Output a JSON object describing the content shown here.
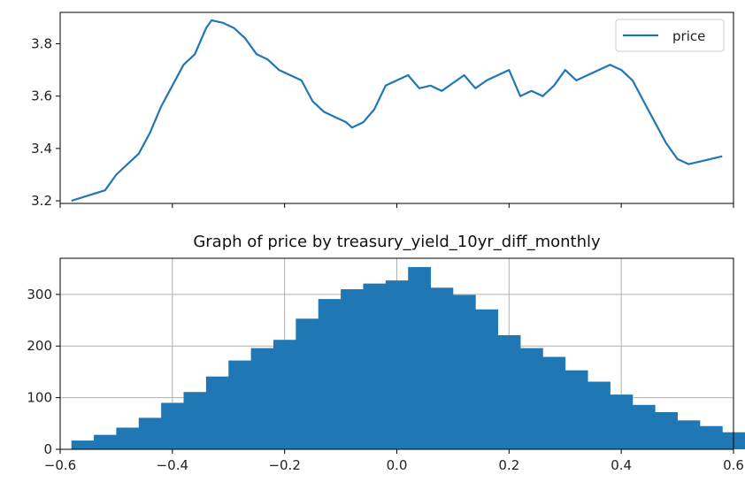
{
  "chart_data": [
    {
      "type": "line",
      "title": "",
      "xlabel": "",
      "ylabel": "",
      "legend": {
        "entries": [
          "price"
        ],
        "placement": "top-right"
      },
      "xlim": [
        -0.6,
        0.6
      ],
      "xticks": [
        -0.6,
        -0.4,
        -0.2,
        0.0,
        0.2,
        0.4,
        0.6
      ],
      "xticklabels_visible": false,
      "ylim": [
        3.19,
        3.92
      ],
      "yticks": [
        3.2,
        3.4,
        3.6,
        3.8
      ],
      "yticklabels": [
        "3.2",
        "3.4",
        "3.6",
        "3.8"
      ],
      "grid": false,
      "color": "#1f77b4",
      "series": [
        {
          "name": "price",
          "x": [
            -0.58,
            -0.55,
            -0.52,
            -0.5,
            -0.48,
            -0.46,
            -0.44,
            -0.42,
            -0.4,
            -0.38,
            -0.36,
            -0.34,
            -0.33,
            -0.31,
            -0.29,
            -0.27,
            -0.25,
            -0.23,
            -0.21,
            -0.19,
            -0.17,
            -0.15,
            -0.13,
            -0.11,
            -0.09,
            -0.08,
            -0.06,
            -0.04,
            -0.02,
            0.0,
            0.02,
            0.04,
            0.06,
            0.08,
            0.1,
            0.12,
            0.14,
            0.16,
            0.18,
            0.2,
            0.22,
            0.24,
            0.26,
            0.28,
            0.3,
            0.32,
            0.34,
            0.36,
            0.38,
            0.4,
            0.42,
            0.44,
            0.46,
            0.48,
            0.5,
            0.52,
            0.54,
            0.56,
            0.58
          ],
          "y": [
            3.2,
            3.22,
            3.24,
            3.3,
            3.34,
            3.38,
            3.46,
            3.56,
            3.64,
            3.72,
            3.76,
            3.86,
            3.89,
            3.88,
            3.86,
            3.82,
            3.76,
            3.74,
            3.7,
            3.68,
            3.66,
            3.58,
            3.54,
            3.52,
            3.5,
            3.48,
            3.5,
            3.55,
            3.64,
            3.66,
            3.68,
            3.63,
            3.64,
            3.62,
            3.65,
            3.68,
            3.63,
            3.66,
            3.68,
            3.7,
            3.6,
            3.62,
            3.6,
            3.64,
            3.7,
            3.66,
            3.68,
            3.7,
            3.72,
            3.7,
            3.66,
            3.58,
            3.5,
            3.42,
            3.36,
            3.34,
            3.35,
            3.36,
            3.37
          ]
        }
      ]
    },
    {
      "type": "bar",
      "title": "Graph of price by treasury_yield_10yr_diff_monthly",
      "xlabel": "",
      "ylabel": "",
      "xlim": [
        -0.6,
        0.6
      ],
      "xticks": [
        -0.6,
        -0.4,
        -0.2,
        0.0,
        0.2,
        0.4,
        0.6
      ],
      "xticklabels": [
        "−0.6",
        "−0.4",
        "−0.2",
        "0.0",
        "0.2",
        "0.4",
        "0.6"
      ],
      "ylim": [
        0,
        370
      ],
      "yticks": [
        0,
        100,
        200,
        300
      ],
      "yticklabels": [
        "0",
        "100",
        "200",
        "300"
      ],
      "grid": true,
      "color": "#1f77b4",
      "bin_start": -0.58,
      "bin_width": 0.04,
      "values": [
        17,
        28,
        42,
        61,
        90,
        111,
        141,
        172,
        196,
        212,
        253,
        291,
        310,
        321,
        327,
        353,
        313,
        299,
        271,
        221,
        196,
        179,
        153,
        131,
        106,
        86,
        72,
        56,
        45,
        33
      ]
    }
  ]
}
